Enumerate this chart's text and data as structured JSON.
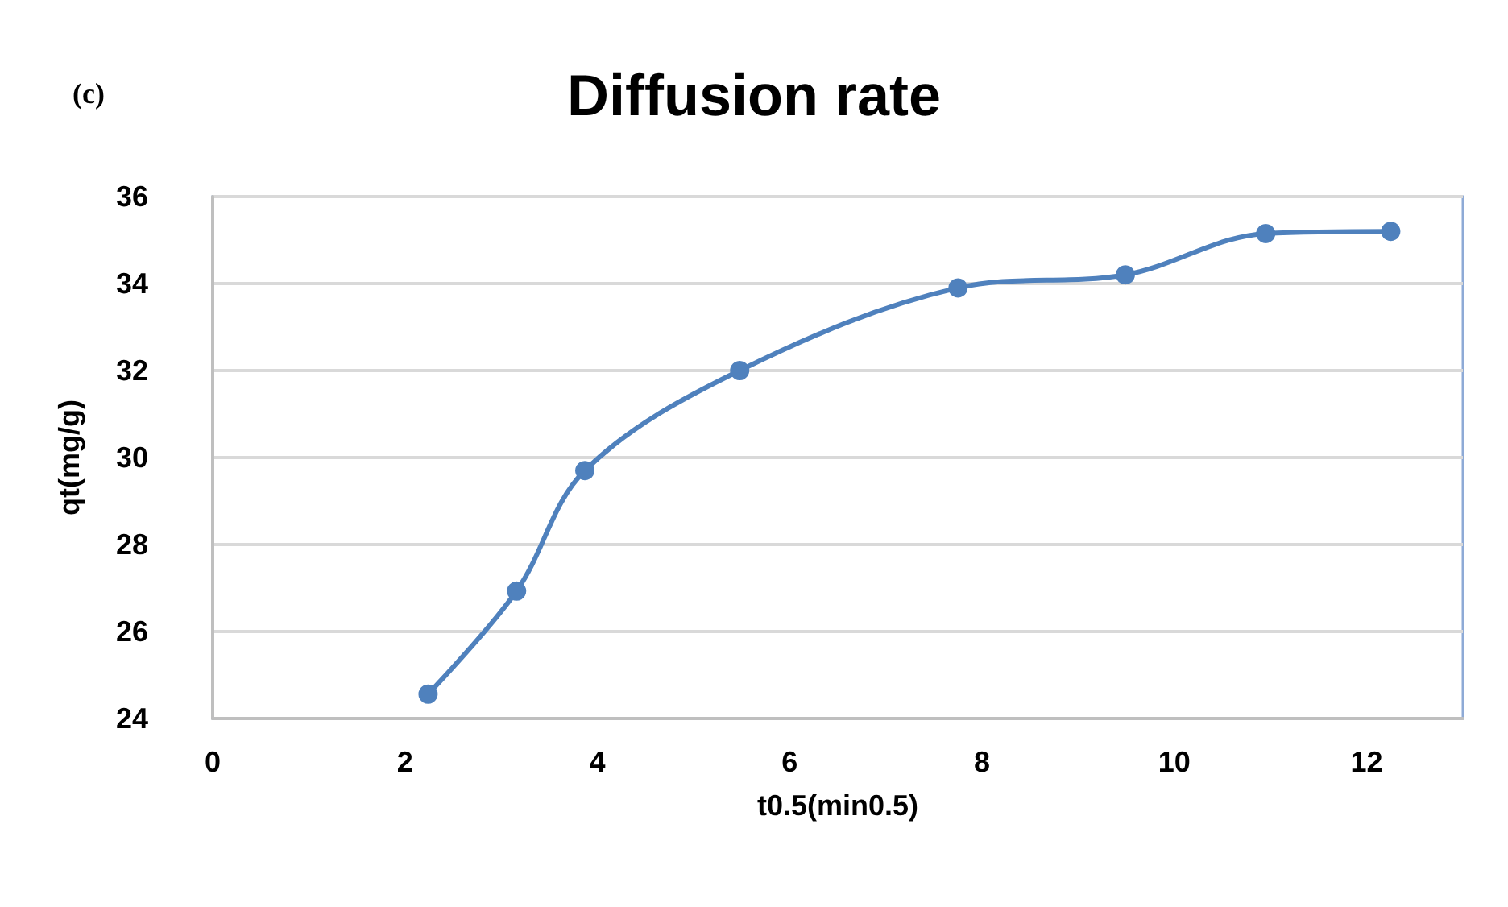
{
  "chart_data": {
    "type": "line",
    "title": "Diffusion rate",
    "xlabel": "t0.5(min0.5)",
    "ylabel": "qt(mg/g)",
    "annotations": [
      "(c)"
    ],
    "x": [
      2.24,
      3.16,
      3.87,
      5.48,
      7.75,
      9.49,
      10.95,
      12.25
    ],
    "series": [
      {
        "color": "#4f81bd",
        "values": [
          24.56,
          26.93,
          29.7,
          32.0,
          33.9,
          34.2,
          35.15,
          35.2
        ]
      }
    ],
    "xlim": [
      0,
      13
    ],
    "xticks": [
      0,
      2,
      4,
      6,
      8,
      10,
      12
    ],
    "ylim": [
      24,
      36
    ],
    "yticks": [
      24,
      26,
      28,
      30,
      32,
      34,
      36
    ],
    "grid": "y",
    "marker": "circle",
    "line_style": "solid"
  }
}
